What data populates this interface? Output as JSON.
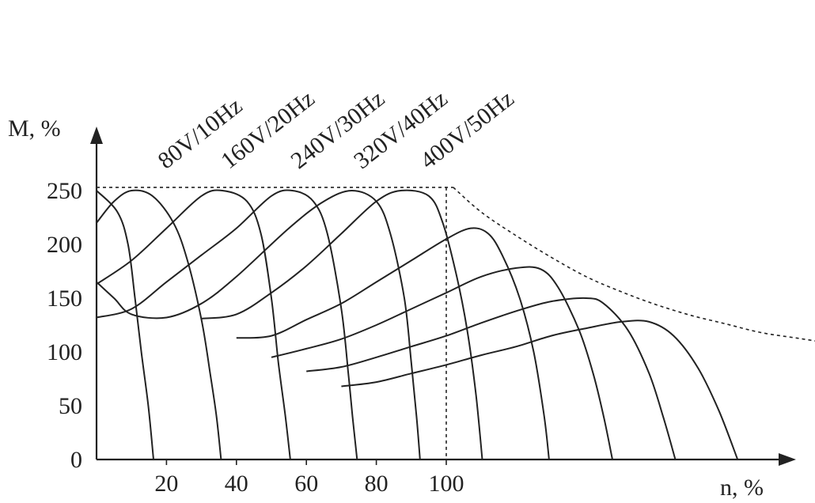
{
  "chart_data": {
    "type": "line",
    "title": "",
    "xlabel": "n, %",
    "ylabel": "M, %",
    "xlim": [
      0,
      210
    ],
    "ylim": [
      0,
      270
    ],
    "x_ticks": [
      20,
      40,
      60,
      80,
      100
    ],
    "y_ticks": [
      0,
      50,
      100,
      150,
      200,
      250
    ],
    "grid": false,
    "colors": {
      "ink": "#222222",
      "background": "#ffffff"
    },
    "series_labels": [
      "80V/10Hz",
      "160V/20Hz",
      "240V/30Hz",
      "320V/40Hz",
      "400V/50Hz"
    ],
    "envelope": [
      [
        0,
        253
      ],
      [
        51,
        253
      ],
      [
        102,
        253
      ],
      [
        110,
        230
      ],
      [
        120,
        208
      ],
      [
        130,
        188
      ],
      [
        140,
        170
      ],
      [
        150,
        156
      ],
      [
        160,
        144
      ],
      [
        170,
        134
      ],
      [
        180,
        126
      ],
      [
        190,
        118
      ],
      [
        200,
        113
      ],
      [
        210,
        108
      ]
    ],
    "series": [
      {
        "points": [
          [
            0,
            250
          ],
          [
            6,
            230
          ],
          [
            9,
            200
          ],
          [
            11,
            150
          ],
          [
            12.8,
            100
          ],
          [
            14.8,
            50
          ],
          [
            16.3,
            0
          ]
        ]
      },
      {
        "points": [
          [
            0,
            220
          ],
          [
            5,
            240
          ],
          [
            10,
            250
          ],
          [
            16,
            245
          ],
          [
            22,
            220
          ],
          [
            26,
            185
          ],
          [
            30,
            130
          ],
          [
            32.5,
            80
          ],
          [
            34.3,
            40
          ],
          [
            35.6,
            0
          ]
        ]
      },
      {
        "points": [
          [
            0,
            163
          ],
          [
            10,
            185
          ],
          [
            20,
            215
          ],
          [
            30,
            245
          ],
          [
            36,
            250
          ],
          [
            43,
            240
          ],
          [
            47,
            210
          ],
          [
            50,
            150
          ],
          [
            52,
            90
          ],
          [
            54,
            40
          ],
          [
            55.4,
            0
          ]
        ]
      },
      {
        "points": [
          [
            0,
            132
          ],
          [
            10,
            140
          ],
          [
            20,
            165
          ],
          [
            30,
            190
          ],
          [
            40,
            215
          ],
          [
            50,
            245
          ],
          [
            56,
            250
          ],
          [
            62,
            240
          ],
          [
            66,
            210
          ],
          [
            70,
            140
          ],
          [
            72,
            80
          ],
          [
            73.2,
            40
          ],
          [
            74.5,
            0
          ]
        ]
      },
      {
        "points": [
          [
            0,
            165
          ],
          [
            5,
            150
          ],
          [
            10,
            135
          ],
          [
            20,
            132
          ],
          [
            30,
            145
          ],
          [
            40,
            170
          ],
          [
            55,
            215
          ],
          [
            65,
            240
          ],
          [
            73,
            250
          ],
          [
            80,
            240
          ],
          [
            84,
            210
          ],
          [
            88,
            150
          ],
          [
            90,
            90
          ],
          [
            91.5,
            40
          ],
          [
            92.5,
            0
          ]
        ]
      },
      {
        "points": [
          [
            30,
            131
          ],
          [
            40,
            135
          ],
          [
            50,
            155
          ],
          [
            60,
            180
          ],
          [
            70,
            210
          ],
          [
            80,
            240
          ],
          [
            87,
            250
          ],
          [
            95,
            245
          ],
          [
            99,
            220
          ],
          [
            103,
            170
          ],
          [
            106,
            120
          ],
          [
            108.5,
            60
          ],
          [
            110.3,
            0
          ]
        ]
      },
      {
        "points": [
          [
            40,
            113
          ],
          [
            50,
            115
          ],
          [
            60,
            130
          ],
          [
            70,
            145
          ],
          [
            80,
            165
          ],
          [
            90,
            185
          ],
          [
            100,
            205
          ],
          [
            107,
            215
          ],
          [
            112,
            210
          ],
          [
            116,
            190
          ],
          [
            121,
            150
          ],
          [
            125,
            100
          ],
          [
            128,
            40
          ],
          [
            129.4,
            0
          ]
        ]
      },
      {
        "points": [
          [
            50,
            95
          ],
          [
            60,
            103
          ],
          [
            70,
            112
          ],
          [
            80,
            125
          ],
          [
            90,
            140
          ],
          [
            100,
            155
          ],
          [
            110,
            170
          ],
          [
            120,
            178
          ],
          [
            127,
            177
          ],
          [
            132,
            160
          ],
          [
            138,
            120
          ],
          [
            142,
            80
          ],
          [
            145,
            40
          ],
          [
            147.5,
            0
          ]
        ]
      },
      {
        "points": [
          [
            60,
            82
          ],
          [
            70,
            86
          ],
          [
            80,
            95
          ],
          [
            90,
            105
          ],
          [
            100,
            115
          ],
          [
            110,
            127
          ],
          [
            120,
            138
          ],
          [
            130,
            147
          ],
          [
            140,
            150
          ],
          [
            145,
            145
          ],
          [
            152,
            120
          ],
          [
            158,
            80
          ],
          [
            162,
            40
          ],
          [
            165.5,
            0
          ]
        ]
      },
      {
        "points": [
          [
            70,
            68
          ],
          [
            80,
            72
          ],
          [
            90,
            80
          ],
          [
            100,
            88
          ],
          [
            110,
            97
          ],
          [
            120,
            105
          ],
          [
            130,
            115
          ],
          [
            140,
            122
          ],
          [
            150,
            128
          ],
          [
            158,
            128
          ],
          [
            165,
            115
          ],
          [
            172,
            85
          ],
          [
            178,
            45
          ],
          [
            183.3,
            0
          ]
        ]
      }
    ]
  }
}
